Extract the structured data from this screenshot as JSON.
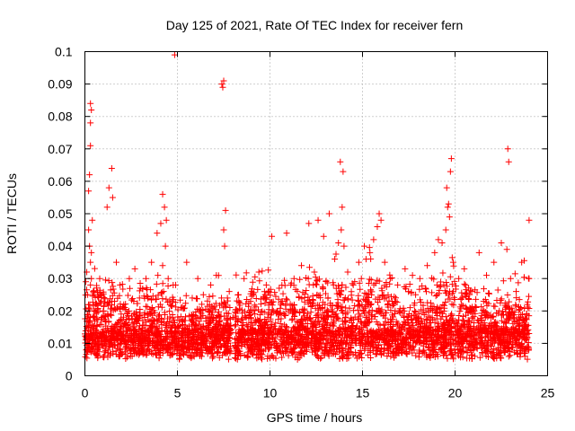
{
  "chart_data": {
    "type": "scatter",
    "title": "Day 125 of 2021, Rate Of TEC Index for receiver fern",
    "xlabel": "GPS time / hours",
    "ylabel": "ROTI / TECUs",
    "xlim": [
      0,
      25
    ],
    "ylim": [
      0,
      0.1
    ],
    "x_ticks": [
      "0",
      "5",
      "10",
      "15",
      "20",
      "25"
    ],
    "y_ticks": [
      "0",
      "0.01",
      "0.02",
      "0.03",
      "0.04",
      "0.05",
      "0.06",
      "0.07",
      "0.08",
      "0.09",
      "0.1"
    ],
    "grid": true,
    "marker": "plus",
    "color": "#ff0000",
    "series": [
      {
        "x": [
          0.05,
          0.1,
          0.15,
          0.2,
          0.25,
          0.3,
          0.3,
          0.35,
          0.3,
          0.25,
          0.2,
          0.3,
          0.35,
          0.4,
          0.3,
          0.25,
          0.35,
          0.45,
          0.2,
          0.3,
          0.5,
          0.6,
          0.8,
          1.0,
          1.2,
          1.3,
          1.45,
          1.5,
          1.7,
          1.9,
          2.1,
          2.4,
          2.7,
          3.0,
          3.3,
          3.6,
          3.9,
          4.1,
          4.2,
          4.3,
          4.4,
          4.2,
          4.35,
          4.5,
          4.25,
          4.6,
          4.85,
          4.9,
          5.2,
          5.5,
          5.8,
          6.1,
          6.4,
          6.8,
          7.1,
          7.4,
          7.45,
          7.5,
          7.5,
          7.55,
          7.6,
          7.7,
          7.8,
          8.0,
          8.3,
          8.6,
          9.0,
          9.4,
          9.8,
          10.1,
          10.5,
          10.9,
          11.3,
          11.7,
          12.1,
          12.4,
          12.6,
          12.9,
          13.2,
          13.5,
          13.7,
          13.8,
          13.9,
          13.95,
          13.85,
          14.0,
          14.2,
          14.5,
          14.8,
          15.1,
          15.4,
          15.6,
          15.8,
          15.9,
          16.0,
          16.2,
          16.5,
          16.9,
          17.3,
          17.7,
          18.1,
          18.5,
          18.9,
          19.1,
          19.3,
          19.5,
          19.55,
          19.65,
          19.7,
          19.75,
          19.8,
          19.6,
          19.9,
          20.2,
          20.5,
          20.9,
          21.3,
          21.7,
          22.1,
          22.5,
          22.8,
          22.9,
          22.85,
          23.0,
          23.3,
          23.6,
          23.9,
          24.0,
          24.0
        ],
        "y": [
          0.029,
          0.032,
          0.025,
          0.045,
          0.062,
          0.071,
          0.078,
          0.082,
          0.084,
          0.04,
          0.057,
          0.035,
          0.03,
          0.048,
          0.028,
          0.02,
          0.038,
          0.026,
          0.015,
          0.012,
          0.025,
          0.022,
          0.03,
          0.02,
          0.052,
          0.058,
          0.064,
          0.055,
          0.035,
          0.028,
          0.022,
          0.03,
          0.033,
          0.027,
          0.03,
          0.035,
          0.044,
          0.047,
          0.056,
          0.052,
          0.048,
          0.034,
          0.04,
          0.03,
          0.026,
          0.022,
          0.099,
          0.028,
          0.021,
          0.035,
          0.024,
          0.03,
          0.025,
          0.028,
          0.031,
          0.09,
          0.089,
          0.091,
          0.045,
          0.04,
          0.051,
          0.024,
          0.026,
          0.018,
          0.025,
          0.03,
          0.026,
          0.032,
          0.028,
          0.043,
          0.027,
          0.044,
          0.03,
          0.034,
          0.047,
          0.032,
          0.048,
          0.043,
          0.05,
          0.036,
          0.041,
          0.066,
          0.052,
          0.063,
          0.045,
          0.04,
          0.032,
          0.028,
          0.035,
          0.04,
          0.038,
          0.042,
          0.046,
          0.05,
          0.048,
          0.035,
          0.03,
          0.028,
          0.033,
          0.031,
          0.03,
          0.034,
          0.038,
          0.042,
          0.041,
          0.045,
          0.058,
          0.053,
          0.049,
          0.063,
          0.067,
          0.052,
          0.035,
          0.03,
          0.033,
          0.026,
          0.038,
          0.031,
          0.035,
          0.041,
          0.039,
          0.066,
          0.07,
          0.03,
          0.026,
          0.035,
          0.022,
          0.048,
          0.03
        ]
      }
    ]
  }
}
